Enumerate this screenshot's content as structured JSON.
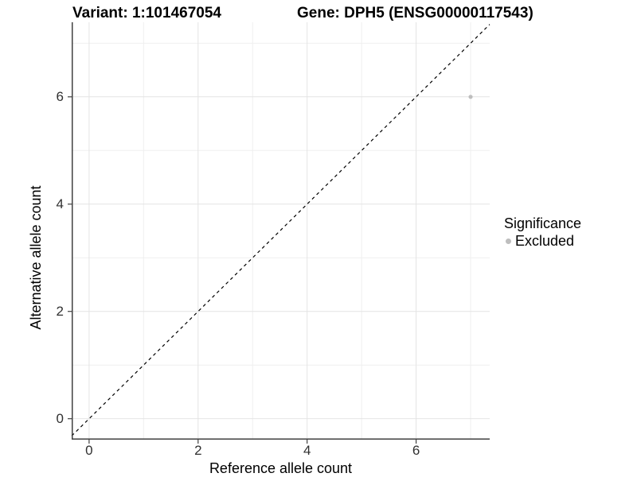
{
  "figure": {
    "title_left": "Variant: 1:101467054",
    "title_right": "Gene: DPH5 (ENSG00000117543)"
  },
  "chart_data": {
    "type": "scatter",
    "title_left": "Variant: 1:101467054",
    "title_right": "Gene: DPH5 (ENSG00000117543)",
    "xlabel": "Reference allele count",
    "ylabel": "Alternative allele count",
    "xlim": [
      -0.32,
      7.35
    ],
    "ylim": [
      -0.39,
      7.39
    ],
    "x_major_ticks": [
      0,
      2,
      4,
      6
    ],
    "y_major_ticks": [
      0,
      2,
      4,
      6
    ],
    "x_minor_gridlines": [
      1,
      3,
      5,
      7
    ],
    "y_minor_gridlines": [
      1,
      3,
      5,
      7
    ],
    "grid": "major+minor",
    "identity_line": {
      "slope": 1,
      "intercept": 0,
      "linetype": "dashed",
      "color": "#000000"
    },
    "series": [
      {
        "name": "Excluded",
        "color": "#bebebe",
        "points": [
          {
            "x": 7,
            "y": 6
          }
        ]
      }
    ],
    "legend": {
      "title": "Significance",
      "position": "right",
      "items": [
        {
          "label": "Excluded",
          "color": "#bebebe"
        }
      ]
    }
  },
  "colors": {
    "background": "#ffffff",
    "grid_major": "#e4e4e4",
    "grid_minor": "#efefef",
    "axis_line": "#404040",
    "tick_mark": "#404040",
    "tick_label": "#303030",
    "text": "#000000",
    "point": "#bebebe"
  }
}
